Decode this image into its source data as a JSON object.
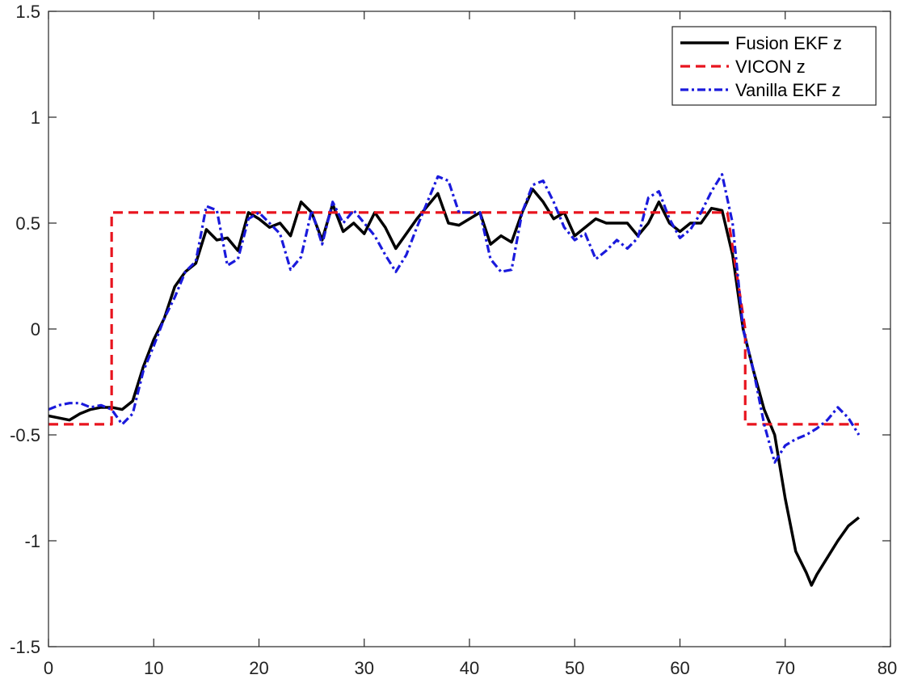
{
  "chart_data": {
    "type": "line",
    "title": "",
    "xlabel": "",
    "ylabel": "",
    "xlim": [
      0,
      80
    ],
    "ylim": [
      -1.5,
      1.5
    ],
    "xticks": [
      0,
      10,
      20,
      30,
      40,
      50,
      60,
      70,
      80
    ],
    "yticks": [
      -1.5,
      -1,
      -0.5,
      0,
      0.5,
      1,
      1.5
    ],
    "xtick_labels": [
      "0",
      "10",
      "20",
      "30",
      "40",
      "50",
      "60",
      "70",
      "80"
    ],
    "ytick_labels": [
      "-1.5",
      "-1",
      "-0.5",
      "0",
      "0.5",
      "1",
      "1.5"
    ],
    "grid": false,
    "legend_placement": "top-right",
    "series": [
      {
        "name": "Fusion EKF z",
        "color": "#000000",
        "style": "solid",
        "x": [
          0,
          1,
          2,
          3,
          4,
          5,
          6,
          7,
          8,
          9,
          10,
          11,
          12,
          13,
          14,
          15,
          16,
          17,
          18,
          19,
          20,
          21,
          22,
          23,
          24,
          25,
          26,
          27,
          28,
          29,
          30,
          31,
          32,
          33,
          34,
          35,
          36,
          37,
          38,
          39,
          40,
          41,
          42,
          43,
          44,
          45,
          46,
          47,
          48,
          49,
          50,
          51,
          52,
          53,
          54,
          55,
          56,
          57,
          58,
          59,
          60,
          61,
          62,
          63,
          64,
          65,
          66,
          67,
          68,
          69,
          70,
          71,
          72,
          72.5,
          73,
          74,
          75,
          76,
          77
        ],
        "y": [
          -0.41,
          -0.42,
          -0.43,
          -0.4,
          -0.38,
          -0.37,
          -0.37,
          -0.38,
          -0.34,
          -0.18,
          -0.05,
          0.05,
          0.2,
          0.27,
          0.31,
          0.47,
          0.42,
          0.43,
          0.37,
          0.55,
          0.52,
          0.48,
          0.5,
          0.44,
          0.6,
          0.55,
          0.42,
          0.59,
          0.46,
          0.5,
          0.45,
          0.55,
          0.48,
          0.38,
          0.45,
          0.52,
          0.58,
          0.64,
          0.5,
          0.49,
          0.52,
          0.55,
          0.4,
          0.44,
          0.41,
          0.55,
          0.66,
          0.6,
          0.52,
          0.55,
          0.44,
          0.48,
          0.52,
          0.5,
          0.5,
          0.5,
          0.44,
          0.5,
          0.6,
          0.5,
          0.46,
          0.5,
          0.5,
          0.57,
          0.56,
          0.35,
          0.0,
          -0.2,
          -0.38,
          -0.5,
          -0.8,
          -1.05,
          -1.15,
          -1.21,
          -1.16,
          -1.08,
          -1.0,
          -0.93,
          -0.89
        ]
      },
      {
        "name": "VICON z",
        "color": "#e8141e",
        "style": "dashed",
        "x": [
          0,
          6,
          6,
          64.5,
          66.2,
          66.2,
          77
        ],
        "y": [
          -0.45,
          -0.45,
          0.55,
          0.55,
          0.0,
          -0.45,
          -0.45
        ]
      },
      {
        "name": "Vanilla EKF z",
        "color": "#1a1adc",
        "style": "dashdot",
        "x": [
          0,
          1,
          2,
          3,
          4,
          5,
          6,
          7,
          8,
          9,
          10,
          11,
          12,
          13,
          14,
          15,
          16,
          17,
          18,
          19,
          20,
          21,
          22,
          23,
          24,
          25,
          26,
          27,
          28,
          29,
          30,
          31,
          32,
          33,
          34,
          35,
          36,
          37,
          38,
          39,
          40,
          41,
          42,
          43,
          44,
          45,
          46,
          47,
          48,
          49,
          50,
          51,
          52,
          53,
          54,
          55,
          56,
          57,
          58,
          59,
          60,
          61,
          62,
          63,
          64,
          65,
          66,
          67,
          68,
          69,
          70,
          71,
          72,
          73,
          74,
          75,
          76,
          77
        ],
        "y": [
          -0.38,
          -0.36,
          -0.35,
          -0.35,
          -0.37,
          -0.36,
          -0.38,
          -0.45,
          -0.4,
          -0.2,
          -0.08,
          0.05,
          0.15,
          0.27,
          0.32,
          0.58,
          0.56,
          0.3,
          0.33,
          0.52,
          0.55,
          0.5,
          0.45,
          0.28,
          0.34,
          0.56,
          0.4,
          0.6,
          0.5,
          0.56,
          0.5,
          0.44,
          0.35,
          0.27,
          0.35,
          0.48,
          0.6,
          0.72,
          0.7,
          0.55,
          0.55,
          0.55,
          0.33,
          0.27,
          0.28,
          0.55,
          0.68,
          0.7,
          0.6,
          0.48,
          0.42,
          0.45,
          0.33,
          0.37,
          0.42,
          0.38,
          0.43,
          0.62,
          0.65,
          0.52,
          0.43,
          0.47,
          0.55,
          0.65,
          0.73,
          0.5,
          0.0,
          -0.2,
          -0.45,
          -0.63,
          -0.55,
          -0.52,
          -0.5,
          -0.47,
          -0.43,
          -0.37,
          -0.42,
          -0.5
        ]
      }
    ]
  }
}
